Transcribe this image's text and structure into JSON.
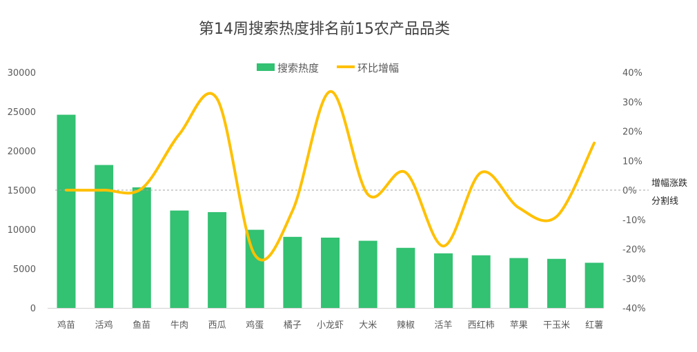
{
  "chart_data": {
    "type": "bar+line",
    "title": "第14周搜索热度排名前15农产品品类",
    "categories": [
      "鸡苗",
      "活鸡",
      "鱼苗",
      "牛肉",
      "西瓜",
      "鸡蛋",
      "橘子",
      "小龙虾",
      "大米",
      "辣椒",
      "活羊",
      "西红柿",
      "苹果",
      "干玉米",
      "红薯"
    ],
    "series": [
      {
        "name": "搜索热度",
        "type": "bar",
        "axis": "left",
        "color": "#33c172",
        "values": [
          24600,
          18200,
          15350,
          12400,
          12200,
          9950,
          9050,
          8950,
          8550,
          7650,
          6950,
          6700,
          6350,
          6250,
          5750
        ]
      },
      {
        "name": "环比增幅",
        "type": "line",
        "axis": "right",
        "color": "#ffc000",
        "values": [
          0,
          0,
          0.5,
          19,
          31,
          -22,
          -7,
          33.5,
          -1.5,
          6,
          -19,
          6,
          -6,
          -9,
          16
        ]
      }
    ],
    "left_axis": {
      "ylim": [
        0,
        30000
      ],
      "ticks": [
        "0",
        "5000",
        "10000",
        "15000",
        "20000",
        "25000",
        "30000"
      ]
    },
    "right_axis": {
      "ylim": [
        -40,
        40
      ],
      "ticks": [
        "-40%",
        "-30%",
        "-20%",
        "-10%",
        "0%",
        "10%",
        "20%",
        "30%",
        "40%"
      ]
    },
    "reference_line": {
      "value": 0,
      "label_line1": "增幅涨跌",
      "label_line2": "分割线"
    },
    "legend": "top-center",
    "grid": false
  }
}
